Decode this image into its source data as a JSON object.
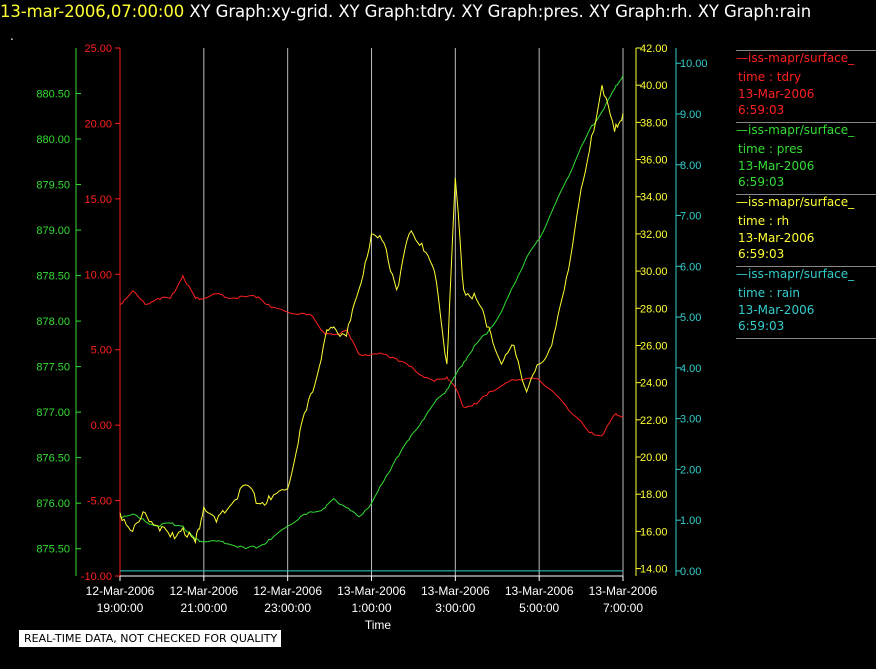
{
  "header": {
    "timestamp": "13-mar-2006,07:00:00",
    "graph_titles": [
      "XY Graph:xy-grid.",
      "XY Graph:tdry.",
      "XY Graph:pres.",
      "XY Graph:rh.",
      "XY Graph:rain"
    ]
  },
  "dot": ".",
  "notice": "REAL-TIME DATA, NOT CHECKED FOR QUALITY",
  "legend": [
    {
      "name": "—iss-mapr/surface_",
      "var": "time : tdry",
      "date": "13-Mar-2006",
      "time": "6:59:03",
      "color": "#ff2020"
    },
    {
      "name": "—iss-mapr/surface_",
      "var": "time : pres",
      "date": "13-Mar-2006",
      "time": "6:59:03",
      "color": "#33dd33"
    },
    {
      "name": "—iss-mapr/surface_",
      "var": "time : rh",
      "date": "13-Mar-2006",
      "time": "6:59:03",
      "color": "#ffff33"
    },
    {
      "name": "—iss-mapr/surface_",
      "var": "time : rain",
      "date": "13-Mar-2006",
      "time": "6:59:03",
      "color": "#33cccc"
    }
  ],
  "chart_data": {
    "type": "line",
    "xlabel": "Time",
    "x_ticks": [
      {
        "l1": "12-Mar-2006",
        "l2": "19:00:00",
        "h": 0
      },
      {
        "l1": "12-Mar-2006",
        "l2": "21:00:00",
        "h": 2
      },
      {
        "l1": "12-Mar-2006",
        "l2": "23:00:00",
        "h": 4
      },
      {
        "l1": "13-Mar-2006",
        "l2": "1:00:00",
        "h": 6
      },
      {
        "l1": "13-Mar-2006",
        "l2": "3:00:00",
        "h": 8
      },
      {
        "l1": "13-Mar-2006",
        "l2": "5:00:00",
        "h": 10
      },
      {
        "l1": "13-Mar-2006",
        "l2": "7:00:00",
        "h": 12
      }
    ],
    "grid": "vertical",
    "axes": {
      "pres": {
        "ticks": [
          "875.50",
          "876.00",
          "876.50",
          "877.00",
          "877.50",
          "878.00",
          "878.50",
          "879.00",
          "879.50",
          "880.00",
          "880.50"
        ],
        "range": [
          875.2,
          881.0
        ],
        "color": "#33dd33",
        "side": "left-outer"
      },
      "tdry": {
        "ticks": [
          "-10.00",
          "-5.00",
          "0.00",
          "5.00",
          "10.00",
          "15.00",
          "20.00",
          "25.00"
        ],
        "range": [
          -10,
          25
        ],
        "color": "#ff2020",
        "side": "left-inner"
      },
      "rh": {
        "ticks": [
          "14.00",
          "16.00",
          "18.00",
          "20.00",
          "22.00",
          "24.00",
          "26.00",
          "28.00",
          "30.00",
          "32.00",
          "34.00",
          "36.00",
          "38.00",
          "40.00",
          "42.00"
        ],
        "range": [
          13.6,
          42
        ],
        "color": "#ffff33",
        "side": "right-inner"
      },
      "rain": {
        "ticks": [
          "0.00",
          "1.00",
          "2.00",
          "3.00",
          "4.00",
          "5.00",
          "6.00",
          "7.00",
          "8.00",
          "9.00",
          "10.00"
        ],
        "range": [
          -0.1,
          10.3
        ],
        "color": "#33cccc",
        "side": "right-outer"
      }
    },
    "series": [
      {
        "name": "tdry",
        "axis": "tdry",
        "color": "#ff2020",
        "x": [
          0.0,
          0.3,
          0.6,
          0.9,
          1.2,
          1.5,
          1.8,
          2.0,
          2.3,
          2.6,
          3.0,
          3.3,
          3.6,
          4.0,
          4.3,
          4.6,
          4.9,
          5.1,
          5.4,
          5.7,
          6.0,
          6.3,
          6.6,
          6.9,
          7.2,
          7.5,
          7.8,
          8.0,
          8.2,
          8.5,
          8.8,
          9.1,
          9.4,
          9.7,
          10.0,
          10.3,
          10.6,
          10.9,
          11.2,
          11.5,
          11.8,
          12.0
        ],
        "y": [
          8.0,
          8.9,
          8.0,
          8.4,
          8.4,
          9.9,
          8.4,
          8.4,
          8.7,
          8.4,
          8.5,
          8.5,
          7.8,
          7.5,
          7.4,
          7.2,
          6.0,
          6.0,
          6.3,
          4.7,
          4.7,
          4.7,
          4.4,
          3.9,
          3.3,
          2.9,
          3.2,
          2.5,
          1.2,
          1.4,
          2.2,
          2.6,
          3.0,
          3.1,
          3.0,
          2.3,
          1.4,
          0.5,
          -0.5,
          -0.7,
          0.7,
          0.6
        ]
      },
      {
        "name": "pres",
        "axis": "pres",
        "color": "#33dd33",
        "x": [
          0.0,
          0.3,
          0.6,
          0.9,
          1.2,
          1.5,
          1.8,
          2.0,
          2.3,
          2.6,
          3.0,
          3.3,
          3.6,
          4.0,
          4.3,
          4.6,
          4.9,
          5.1,
          5.4,
          5.7,
          6.0,
          6.3,
          6.6,
          6.9,
          7.2,
          7.5,
          7.8,
          8.0,
          8.2,
          8.5,
          8.8,
          9.1,
          9.4,
          9.7,
          10.0,
          10.3,
          10.6,
          10.9,
          11.2,
          11.5,
          11.8,
          12.0
        ],
        "y": [
          875.85,
          875.88,
          875.8,
          875.75,
          875.78,
          875.75,
          875.6,
          875.58,
          875.58,
          875.55,
          875.5,
          875.52,
          875.6,
          875.75,
          875.85,
          875.9,
          875.95,
          876.05,
          875.95,
          875.85,
          876.0,
          876.25,
          876.5,
          876.7,
          876.9,
          877.1,
          877.25,
          877.4,
          877.55,
          877.75,
          877.9,
          878.1,
          878.4,
          878.7,
          878.9,
          879.2,
          879.5,
          879.8,
          880.1,
          880.3,
          880.55,
          880.7
        ]
      },
      {
        "name": "rh",
        "axis": "rh",
        "color": "#ffff33",
        "x": [
          0.0,
          0.3,
          0.6,
          0.9,
          1.2,
          1.5,
          1.8,
          2.0,
          2.3,
          2.6,
          3.0,
          3.3,
          3.6,
          4.0,
          4.3,
          4.6,
          4.9,
          5.1,
          5.4,
          5.7,
          6.0,
          6.3,
          6.6,
          6.9,
          7.2,
          7.5,
          7.8,
          8.0,
          8.2,
          8.5,
          8.8,
          9.1,
          9.4,
          9.7,
          10.0,
          10.3,
          10.6,
          10.9,
          11.2,
          11.5,
          11.8,
          12.0
        ],
        "y": [
          17.0,
          16.0,
          17.0,
          16.3,
          15.7,
          16.2,
          15.4,
          17.3,
          16.5,
          17.3,
          18.5,
          17.5,
          17.7,
          18.3,
          21.5,
          23.5,
          26.5,
          27.0,
          26.5,
          29.0,
          32.0,
          31.5,
          29.0,
          32.0,
          31.5,
          30.0,
          25.0,
          35.0,
          29.0,
          28.5,
          27.0,
          25.0,
          26.0,
          23.5,
          25.0,
          26.0,
          29.0,
          33.0,
          36.5,
          40.0,
          37.5,
          38.5
        ]
      },
      {
        "name": "rain",
        "axis": "rain",
        "color": "#33cccc",
        "x": [
          0.0,
          12.0
        ],
        "y": [
          0.0,
          0.0
        ]
      }
    ]
  }
}
